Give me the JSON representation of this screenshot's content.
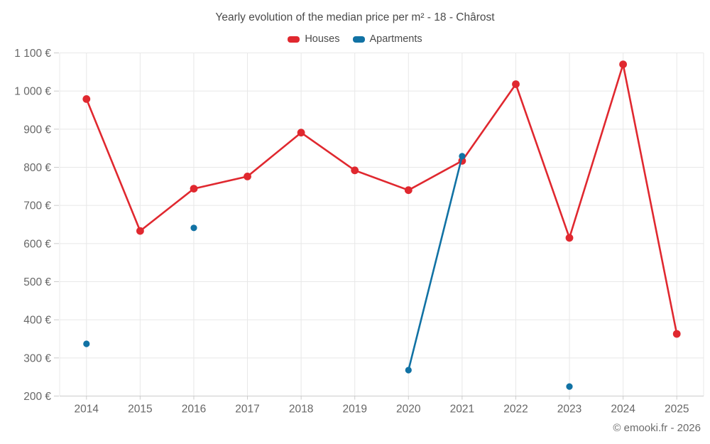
{
  "chart": {
    "title": "Yearly evolution of the median price per m² - 18 - Chârost",
    "footer": "© emooki.fr - 2026"
  },
  "chart_data": {
    "type": "line",
    "categories": [
      "2014",
      "2015",
      "2016",
      "2017",
      "2018",
      "2019",
      "2020",
      "2021",
      "2022",
      "2023",
      "2024",
      "2025"
    ],
    "series": [
      {
        "name": "Houses",
        "color": "#e0282f",
        "values": [
          979,
          633,
          744,
          776,
          891,
          792,
          740,
          817,
          1018,
          615,
          1070,
          363
        ]
      },
      {
        "name": "Apartments",
        "color": "#1172a4",
        "values": [
          337,
          null,
          641,
          null,
          null,
          null,
          268,
          829,
          null,
          225,
          null,
          null
        ]
      }
    ],
    "ylim": [
      200,
      1100
    ],
    "ytick_step": 100,
    "ylabel_suffix": " €",
    "grid": true,
    "legend_position": "top"
  }
}
